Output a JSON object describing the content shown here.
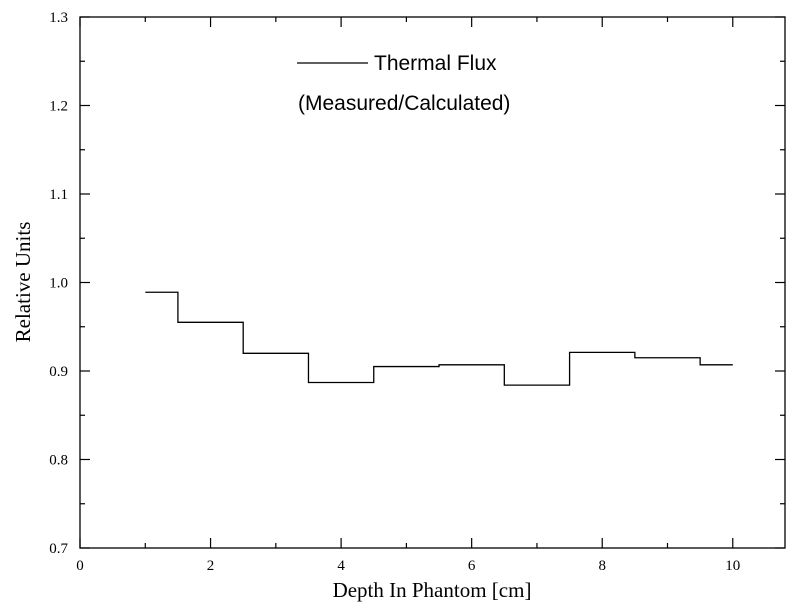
{
  "chart_data": {
    "type": "line",
    "step": true,
    "title": "",
    "xlabel": "Depth In Phantom [cm]",
    "ylabel": "Relative Units",
    "xlim": [
      0,
      10.8
    ],
    "ylim": [
      0.7,
      1.3
    ],
    "x_ticks": [
      0,
      2,
      4,
      6,
      8,
      10
    ],
    "x_tick_labels": [
      "0",
      "2",
      "4",
      "6",
      "8",
      "10"
    ],
    "y_ticks": [
      0.7,
      0.8,
      0.9,
      1.0,
      1.1,
      1.2,
      1.3
    ],
    "y_tick_labels": [
      "0.7",
      "0.8",
      "0.9",
      "1.0",
      "1.1",
      "1.2",
      "1.3"
    ],
    "grid": false,
    "legend_position": "top-center",
    "legend": {
      "line1": "Thermal Flux",
      "line2": "(Measured/Calculated)"
    },
    "series": [
      {
        "name": "Thermal Flux",
        "color": "#000000",
        "x": [
          1.0,
          1.5,
          2.5,
          3.5,
          4.5,
          5.5,
          6.5,
          7.5,
          8.5,
          9.5,
          10.0
        ],
        "y": [
          0.989,
          0.955,
          0.92,
          0.887,
          0.905,
          0.907,
          0.884,
          0.921,
          0.915,
          0.907,
          0.907
        ]
      }
    ]
  }
}
